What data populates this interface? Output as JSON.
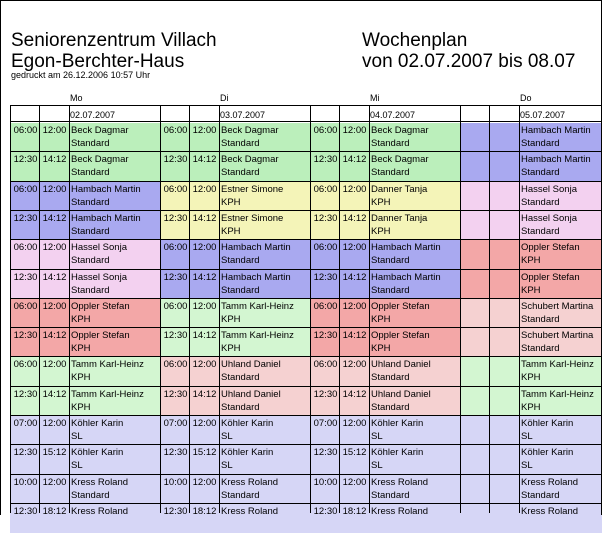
{
  "header": {
    "org_line1": "Seniorenzentrum Villach",
    "org_line2": "Egon-Berchter-Haus",
    "plan_title": "Wochenplan",
    "plan_range": "von 02.07.2007 bis 08.07",
    "printed": "gedruckt am 26.12.2006  10:57 Uhr"
  },
  "colors": {
    "green": "#bbefbb",
    "blue": "#a9a9f0",
    "yellow": "#f4f4b8",
    "pink": "#f3d1f0",
    "red": "#f3a7a7",
    "lightgreen": "#d3f6d1",
    "salmon": "#f5d1d1",
    "lavender": "#d6d6f6"
  },
  "days": [
    {
      "name": "Mo",
      "date": "02.07.2007",
      "shifts": [
        {
          "start": "06:00",
          "end": "12:00",
          "name": "Beck Dagmar",
          "type": "Standard",
          "color": "green"
        },
        {
          "start": "12:30",
          "end": "14:12",
          "name": "Beck Dagmar",
          "type": "Standard",
          "color": "green"
        },
        {
          "start": "06:00",
          "end": "12:00",
          "name": "Hambach Martin",
          "type": "Standard",
          "color": "blue"
        },
        {
          "start": "12:30",
          "end": "14:12",
          "name": "Hambach Martin",
          "type": "Standard",
          "color": "blue"
        },
        {
          "start": "06:00",
          "end": "12:00",
          "name": "Hassel Sonja",
          "type": "Standard",
          "color": "pink"
        },
        {
          "start": "12:30",
          "end": "14:12",
          "name": "Hassel Sonja",
          "type": "Standard",
          "color": "pink"
        },
        {
          "start": "06:00",
          "end": "12:00",
          "name": "Oppler Stefan",
          "type": "KPH",
          "color": "red"
        },
        {
          "start": "12:30",
          "end": "14:12",
          "name": "Oppler Stefan",
          "type": "KPH",
          "color": "red"
        },
        {
          "start": "06:00",
          "end": "12:00",
          "name": "Tamm Karl-Heinz",
          "type": "KPH",
          "color": "lightgreen"
        },
        {
          "start": "12:30",
          "end": "14:12",
          "name": "Tamm Karl-Heinz",
          "type": "KPH",
          "color": "lightgreen"
        },
        {
          "start": "07:00",
          "end": "12:00",
          "name": "Köhler Karin",
          "type": "SL",
          "color": "lavender"
        },
        {
          "start": "12:30",
          "end": "15:12",
          "name": "Köhler Karin",
          "type": "SL",
          "color": "lavender"
        },
        {
          "start": "10:00",
          "end": "12:00",
          "name": "Kress Roland",
          "type": "Standard",
          "color": "lavender"
        },
        {
          "start": "12:30",
          "end": "18:12",
          "name": "Kress Roland",
          "type": "",
          "color": "lavender"
        }
      ]
    },
    {
      "name": "Di",
      "date": "03.07.2007",
      "shifts": [
        {
          "start": "06:00",
          "end": "12:00",
          "name": "Beck Dagmar",
          "type": "Standard",
          "color": "green"
        },
        {
          "start": "12:30",
          "end": "14:12",
          "name": "Beck Dagmar",
          "type": "Standard",
          "color": "green"
        },
        {
          "start": "06:00",
          "end": "12:00",
          "name": "Estner Simone",
          "type": "KPH",
          "color": "yellow"
        },
        {
          "start": "12:30",
          "end": "14:12",
          "name": "Estner Simone",
          "type": "KPH",
          "color": "yellow"
        },
        {
          "start": "06:00",
          "end": "12:00",
          "name": "Hambach Martin",
          "type": "Standard",
          "color": "blue"
        },
        {
          "start": "12:30",
          "end": "14:12",
          "name": "Hambach Martin",
          "type": "Standard",
          "color": "blue"
        },
        {
          "start": "06:00",
          "end": "12:00",
          "name": "Tamm Karl-Heinz",
          "type": "KPH",
          "color": "lightgreen"
        },
        {
          "start": "12:30",
          "end": "14:12",
          "name": "Tamm Karl-Heinz",
          "type": "KPH",
          "color": "lightgreen"
        },
        {
          "start": "06:00",
          "end": "12:00",
          "name": "Uhland Daniel",
          "type": "Standard",
          "color": "salmon"
        },
        {
          "start": "12:30",
          "end": "14:12",
          "name": "Uhland Daniel",
          "type": "Standard",
          "color": "salmon"
        },
        {
          "start": "07:00",
          "end": "12:00",
          "name": "Köhler Karin",
          "type": "SL",
          "color": "lavender"
        },
        {
          "start": "12:30",
          "end": "15:12",
          "name": "Köhler Karin",
          "type": "SL",
          "color": "lavender"
        },
        {
          "start": "10:00",
          "end": "12:00",
          "name": "Kress Roland",
          "type": "Standard",
          "color": "lavender"
        },
        {
          "start": "12:30",
          "end": "18:12",
          "name": "Kress Roland",
          "type": "",
          "color": "lavender"
        }
      ]
    },
    {
      "name": "Mi",
      "date": "04.07.2007",
      "shifts": [
        {
          "start": "06:00",
          "end": "12:00",
          "name": "Beck Dagmar",
          "type": "Standard",
          "color": "green"
        },
        {
          "start": "12:30",
          "end": "14:12",
          "name": "Beck Dagmar",
          "type": "Standard",
          "color": "green"
        },
        {
          "start": "06:00",
          "end": "12:00",
          "name": "Danner Tanja",
          "type": "KPH",
          "color": "yellow"
        },
        {
          "start": "12:30",
          "end": "14:12",
          "name": "Danner Tanja",
          "type": "KPH",
          "color": "yellow"
        },
        {
          "start": "06:00",
          "end": "12:00",
          "name": "Hambach Martin",
          "type": "Standard",
          "color": "blue"
        },
        {
          "start": "12:30",
          "end": "14:12",
          "name": "Hambach Martin",
          "type": "Standard",
          "color": "blue"
        },
        {
          "start": "06:00",
          "end": "12:00",
          "name": "Oppler Stefan",
          "type": "KPH",
          "color": "red"
        },
        {
          "start": "12:30",
          "end": "14:12",
          "name": "Oppler Stefan",
          "type": "KPH",
          "color": "red"
        },
        {
          "start": "06:00",
          "end": "12:00",
          "name": "Uhland Daniel",
          "type": "Standard",
          "color": "salmon"
        },
        {
          "start": "12:30",
          "end": "14:12",
          "name": "Uhland Daniel",
          "type": "Standard",
          "color": "salmon"
        },
        {
          "start": "07:00",
          "end": "12:00",
          "name": "Köhler Karin",
          "type": "SL",
          "color": "lavender"
        },
        {
          "start": "12:30",
          "end": "15:12",
          "name": "Köhler Karin",
          "type": "SL",
          "color": "lavender"
        },
        {
          "start": "10:00",
          "end": "12:00",
          "name": "Kress Roland",
          "type": "Standard",
          "color": "lavender"
        },
        {
          "start": "12:30",
          "end": "18:12",
          "name": "Kress Roland",
          "type": "",
          "color": "lavender"
        }
      ]
    },
    {
      "name": "Do",
      "date": "05.07.2007",
      "shifts": [
        {
          "start": "",
          "end": "",
          "name": "Hambach Martin",
          "type": "Standard",
          "color": "blue"
        },
        {
          "start": "",
          "end": "",
          "name": "Hambach Martin",
          "type": "Standard",
          "color": "blue"
        },
        {
          "start": "",
          "end": "",
          "name": "Hassel Sonja",
          "type": "Standard",
          "color": "pink"
        },
        {
          "start": "",
          "end": "",
          "name": "Hassel Sonja",
          "type": "Standard",
          "color": "pink"
        },
        {
          "start": "",
          "end": "",
          "name": "Oppler Stefan",
          "type": "KPH",
          "color": "red"
        },
        {
          "start": "",
          "end": "",
          "name": "Oppler Stefan",
          "type": "KPH",
          "color": "red"
        },
        {
          "start": "",
          "end": "",
          "name": "Schubert Martina",
          "type": "Standard",
          "color": "salmon"
        },
        {
          "start": "",
          "end": "",
          "name": "Schubert Martina",
          "type": "Standard",
          "color": "salmon"
        },
        {
          "start": "",
          "end": "",
          "name": "Tamm Karl-Heinz",
          "type": "KPH",
          "color": "lightgreen"
        },
        {
          "start": "",
          "end": "",
          "name": "Tamm Karl-Heinz",
          "type": "KPH",
          "color": "lightgreen"
        },
        {
          "start": "",
          "end": "",
          "name": "Köhler Karin",
          "type": "SL",
          "color": "lavender"
        },
        {
          "start": "",
          "end": "",
          "name": "Köhler Karin",
          "type": "SL",
          "color": "lavender"
        },
        {
          "start": "",
          "end": "",
          "name": "Kress Roland",
          "type": "Standard",
          "color": "lavender"
        },
        {
          "start": "",
          "end": "",
          "name": "Kress Roland",
          "type": "",
          "color": "lavender"
        }
      ]
    }
  ]
}
